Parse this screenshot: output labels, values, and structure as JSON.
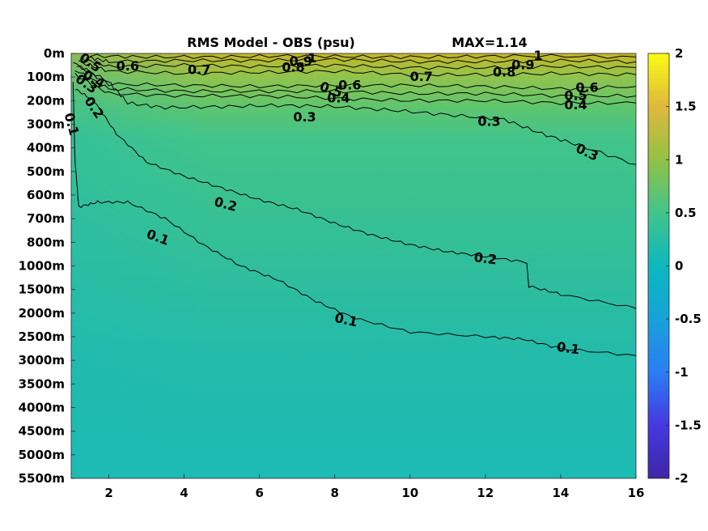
{
  "chart_data": {
    "type": "heatmap",
    "title": "RMS Model - OBS (psu)",
    "max_label": "MAX=1.14",
    "x": {
      "lim": [
        1,
        16
      ],
      "ticks": [
        2,
        4,
        6,
        8,
        10,
        12,
        14,
        16
      ]
    },
    "y": {
      "reversed": true,
      "levels": [
        "0m",
        "100m",
        "200m",
        "300m",
        "400m",
        "500m",
        "600m",
        "700m",
        "800m",
        "1000m",
        "1500m",
        "2000m",
        "2500m",
        "3000m",
        "3500m",
        "4000m",
        "4500m",
        "5000m",
        "5500m"
      ]
    },
    "colorbar": {
      "lim": [
        -2,
        2
      ],
      "ticks": [
        2,
        1.5,
        1,
        0.5,
        0,
        -0.5,
        -1,
        -1.5,
        -2
      ],
      "tick_labels": [
        "2",
        "1.5",
        "1",
        "0.5",
        "0",
        "-0.5",
        "-1",
        "-1.5",
        "-2"
      ],
      "colormap": "parula"
    },
    "contour_levels": [
      0.1,
      0.2,
      0.3,
      0.4,
      0.5,
      0.6,
      0.7,
      0.8,
      0.9,
      1
    ],
    "contours": [
      {
        "level": 0.1,
        "points": [
          [
            1.05,
            1.2
          ],
          [
            1.1,
            4.5
          ],
          [
            1.2,
            6.5
          ],
          [
            1.7,
            6.3
          ],
          [
            2.5,
            6.3
          ],
          [
            3.5,
            7.0
          ],
          [
            4.5,
            8.1
          ],
          [
            5.5,
            9.0
          ],
          [
            6.5,
            9.6
          ],
          [
            7.5,
            10.5
          ],
          [
            8.5,
            11.2
          ],
          [
            10,
            11.8
          ],
          [
            12,
            12.0
          ],
          [
            13,
            12.1
          ],
          [
            14,
            12.5
          ],
          [
            16,
            12.8
          ]
        ]
      },
      {
        "level": 0.2,
        "points": [
          [
            1.1,
            1.5
          ],
          [
            1.6,
            2.0
          ],
          [
            2.2,
            3.4
          ],
          [
            3,
            4.6
          ],
          [
            4,
            5.2
          ],
          [
            5,
            5.7
          ],
          [
            6,
            6.2
          ],
          [
            7,
            6.6
          ],
          [
            8,
            7.2
          ],
          [
            9,
            7.7
          ],
          [
            10,
            8.1
          ],
          [
            11,
            8.4
          ],
          [
            12,
            8.6
          ],
          [
            13.1,
            8.85
          ],
          [
            13.15,
            9.85
          ],
          [
            14,
            10.2
          ],
          [
            16,
            10.8
          ]
        ]
      },
      {
        "level": 0.3,
        "points": [
          [
            1.05,
            0.4
          ],
          [
            2,
            1.2
          ],
          [
            2.5,
            2.1
          ],
          [
            3.5,
            2.3
          ],
          [
            5,
            2.25
          ],
          [
            6.5,
            2.2
          ],
          [
            8,
            2.25
          ],
          [
            9.5,
            2.4
          ],
          [
            11,
            2.6
          ],
          [
            12.5,
            2.8
          ],
          [
            13.5,
            3.4
          ],
          [
            14.5,
            3.9
          ],
          [
            16,
            4.7
          ]
        ]
      },
      {
        "level": 0.4,
        "points": [
          [
            1.1,
            0.9
          ],
          [
            2,
            1.7
          ],
          [
            4,
            1.8
          ],
          [
            6,
            1.8
          ],
          [
            8,
            1.9
          ],
          [
            10,
            2.0
          ],
          [
            12,
            2.0
          ],
          [
            14,
            2.1
          ],
          [
            16,
            2.1
          ]
        ]
      },
      {
        "level": 0.5,
        "points": [
          [
            1.1,
            0.7
          ],
          [
            2,
            1.5
          ],
          [
            4,
            1.6
          ],
          [
            6,
            1.6
          ],
          [
            8,
            1.6
          ],
          [
            10,
            1.7
          ],
          [
            12,
            1.7
          ],
          [
            14,
            1.8
          ],
          [
            16,
            1.8
          ]
        ]
      },
      {
        "level": 0.6,
        "points": [
          [
            1.15,
            0.5
          ],
          [
            2,
            1.3
          ],
          [
            4,
            1.35
          ],
          [
            6,
            1.4
          ],
          [
            8,
            1.35
          ],
          [
            10,
            1.35
          ],
          [
            12,
            1.4
          ],
          [
            14,
            1.5
          ],
          [
            16,
            1.4
          ]
        ]
      },
      {
        "level": 0.7,
        "points": [
          [
            1.2,
            0.35
          ],
          [
            2,
            0.75
          ],
          [
            4,
            0.85
          ],
          [
            6,
            0.8
          ],
          [
            8,
            0.75
          ],
          [
            10,
            0.9
          ],
          [
            12,
            0.9
          ],
          [
            14,
            0.85
          ],
          [
            16,
            0.9
          ]
        ]
      },
      {
        "level": 0.8,
        "points": [
          [
            1.3,
            0.25
          ],
          [
            2,
            0.55
          ],
          [
            4,
            0.5
          ],
          [
            6,
            0.55
          ],
          [
            8,
            0.5
          ],
          [
            10,
            0.6
          ],
          [
            12,
            0.6
          ],
          [
            14,
            0.55
          ],
          [
            16,
            0.6
          ]
        ]
      },
      {
        "level": 0.9,
        "points": [
          [
            1.4,
            0.15
          ],
          [
            2,
            0.35
          ],
          [
            4,
            0.3
          ],
          [
            6,
            0.3
          ],
          [
            8,
            0.25
          ],
          [
            10,
            0.35
          ],
          [
            12,
            0.35
          ],
          [
            14,
            0.3
          ],
          [
            16,
            0.35
          ]
        ]
      },
      {
        "level": 1,
        "points": [
          [
            1.5,
            0.1
          ],
          [
            3,
            0.15
          ],
          [
            5,
            0.15
          ],
          [
            7,
            0.1
          ],
          [
            9,
            0.15
          ],
          [
            11,
            0.15
          ],
          [
            13,
            0.1
          ],
          [
            16,
            0.15
          ]
        ]
      }
    ],
    "contour_labels": [
      {
        "text": "0.1",
        "x": 1.0,
        "y": 3.0,
        "rot": 75
      },
      {
        "text": "0.1",
        "x": 3.3,
        "y": 7.8,
        "rot": 20
      },
      {
        "text": "0.1",
        "x": 8.3,
        "y": 11.3,
        "rot": 12
      },
      {
        "text": "0.1",
        "x": 14.2,
        "y": 12.5,
        "rot": 8
      },
      {
        "text": "0.2",
        "x": 1.6,
        "y": 2.3,
        "rot": 55
      },
      {
        "text": "0.2",
        "x": 5.1,
        "y": 6.4,
        "rot": 15
      },
      {
        "text": "0.2",
        "x": 12,
        "y": 8.7,
        "rot": 7
      },
      {
        "text": "0.3",
        "x": 1.4,
        "y": 1.3,
        "rot": 35
      },
      {
        "text": "0.3",
        "x": 7.2,
        "y": 2.7,
        "rot": 0
      },
      {
        "text": "0.3",
        "x": 12.1,
        "y": 2.9,
        "rot": 0
      },
      {
        "text": "0.3",
        "x": 14.7,
        "y": 4.2,
        "rot": 25
      },
      {
        "text": "0.4",
        "x": 1.6,
        "y": 1.1,
        "rot": 30
      },
      {
        "text": "0.4",
        "x": 8.1,
        "y": 1.9,
        "rot": 0
      },
      {
        "text": "0.4",
        "x": 14.4,
        "y": 2.2,
        "rot": 0
      },
      {
        "text": "0.5",
        "x": 1.5,
        "y": 0.4,
        "rot": 35
      },
      {
        "text": "0.5",
        "x": 7.9,
        "y": 1.55,
        "rot": 20
      },
      {
        "text": "0.5",
        "x": 14.4,
        "y": 1.8,
        "rot": 0
      },
      {
        "text": "0.6",
        "x": 2.5,
        "y": 0.55,
        "rot": 0
      },
      {
        "text": "0.6",
        "x": 8.4,
        "y": 1.35,
        "rot": 0
      },
      {
        "text": "0.6",
        "x": 14.7,
        "y": 1.45,
        "rot": 0
      },
      {
        "text": "0.7",
        "x": 4.4,
        "y": 0.7,
        "rot": 0
      },
      {
        "text": "0.7",
        "x": 10.3,
        "y": 1.0,
        "rot": 0
      },
      {
        "text": "0.8",
        "x": 6.9,
        "y": 0.6,
        "rot": 0
      },
      {
        "text": "0.8",
        "x": 12.5,
        "y": 0.8,
        "rot": 0
      },
      {
        "text": "0.9",
        "x": 7.1,
        "y": 0.35,
        "rot": 0
      },
      {
        "text": "0.9",
        "x": 13.0,
        "y": 0.5,
        "rot": 0
      },
      {
        "text": "1",
        "x": 7.4,
        "y": 0.2,
        "rot": 0
      },
      {
        "text": "1",
        "x": 13.4,
        "y": 0.1,
        "rot": 0
      }
    ]
  }
}
